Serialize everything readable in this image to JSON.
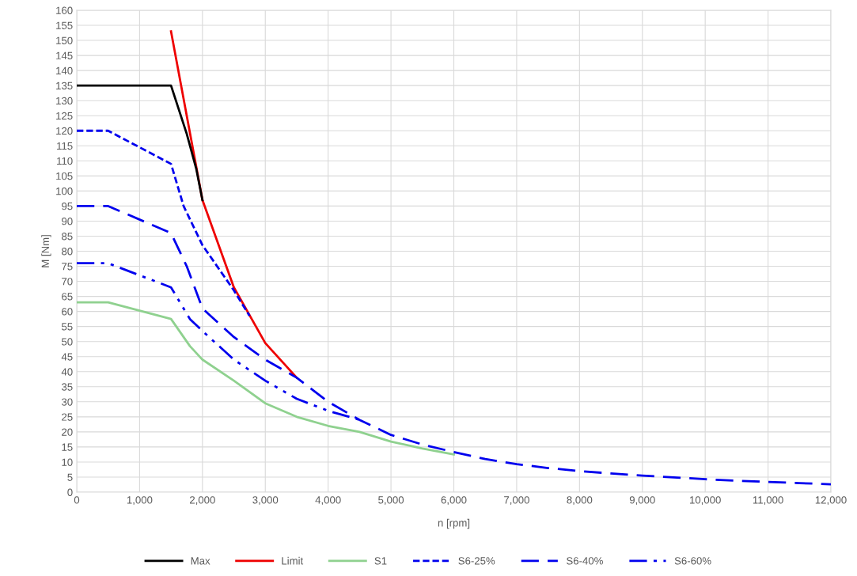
{
  "chart_data": {
    "type": "line",
    "xlabel": "n [rpm]",
    "ylabel": "M [Nm]",
    "xlim": [
      0,
      12000
    ],
    "ylim": [
      0,
      160
    ],
    "xticks": [
      0,
      {
        "value": 1000,
        "label": "1,000"
      },
      {
        "value": 2000,
        "label": "2,000"
      },
      {
        "value": 3000,
        "label": "3,000"
      },
      {
        "value": 4000,
        "label": "4,000"
      },
      {
        "value": 5000,
        "label": "5,000"
      },
      {
        "value": 6000,
        "label": "6,000"
      },
      {
        "value": 7000,
        "label": "7,000"
      },
      {
        "value": 8000,
        "label": "8,000"
      },
      {
        "value": 9000,
        "label": "9,000"
      },
      {
        "value": 10000,
        "label": "10,000"
      },
      {
        "value": 11000,
        "label": "11,000"
      },
      {
        "value": 12000,
        "label": "12,000"
      }
    ],
    "yticks": [
      0,
      5,
      10,
      15,
      20,
      25,
      30,
      35,
      40,
      45,
      50,
      55,
      60,
      65,
      70,
      75,
      80,
      85,
      90,
      95,
      100,
      105,
      110,
      115,
      120,
      125,
      130,
      135,
      140,
      145,
      150,
      155,
      160
    ],
    "grid": true,
    "legend": "bottom",
    "marker": "none",
    "series": [
      {
        "name": "Max",
        "color": "#000000",
        "line_style": "solid",
        "x": [
          0,
          1500,
          1750,
          1900,
          2000
        ],
        "values": [
          135,
          135,
          119,
          107.5,
          97
        ]
      },
      {
        "name": "Limit",
        "color": "#ee0000",
        "line_style": "solid",
        "x": [
          1500,
          2000,
          2500,
          3000,
          3500
        ],
        "values": [
          153,
          97,
          68,
          49.5,
          38
        ]
      },
      {
        "name": "S1",
        "color": "#8fd18f",
        "line_style": "solid",
        "x": [
          0,
          500,
          1500,
          1800,
          2000,
          2500,
          3000,
          3500,
          4000,
          4500,
          5000,
          5500,
          6000
        ],
        "values": [
          63,
          63,
          57.5,
          48.5,
          44,
          37,
          29.5,
          25,
          22,
          20,
          16.8,
          14.5,
          12.5
        ]
      },
      {
        "name": "S6-25%",
        "color": "#0000ee",
        "line_style": "dashed",
        "x": [
          0,
          500,
          1500,
          1700,
          2000,
          2500,
          2750
        ],
        "values": [
          120,
          120,
          109,
          95,
          82,
          67,
          58.5
        ]
      },
      {
        "name": "S6-40%",
        "color": "#0000ee",
        "line_style": "dashed",
        "x": [
          0,
          500,
          1500,
          1750,
          2000,
          2500,
          3000,
          3500,
          4000,
          4500,
          5000,
          5500,
          6000,
          6500,
          7000,
          7500,
          8000,
          8500,
          9000,
          9500,
          10000,
          10500,
          11000,
          11500,
          12000
        ],
        "values": [
          95,
          95,
          86,
          75,
          61,
          51.5,
          44,
          38,
          30,
          24,
          19,
          15.8,
          13.3,
          11,
          9.3,
          8,
          7,
          6.2,
          5.5,
          4.9,
          4.3,
          3.8,
          3.4,
          3,
          2.6
        ]
      },
      {
        "name": "S6-60%",
        "color": "#0000ee",
        "line_style": "dashed",
        "x": [
          0,
          500,
          1500,
          1800,
          2000,
          2500,
          3000,
          3500,
          4000,
          4500
        ],
        "values": [
          76,
          76,
          68,
          57.5,
          53.5,
          44,
          37,
          31,
          27,
          24
        ]
      }
    ]
  }
}
